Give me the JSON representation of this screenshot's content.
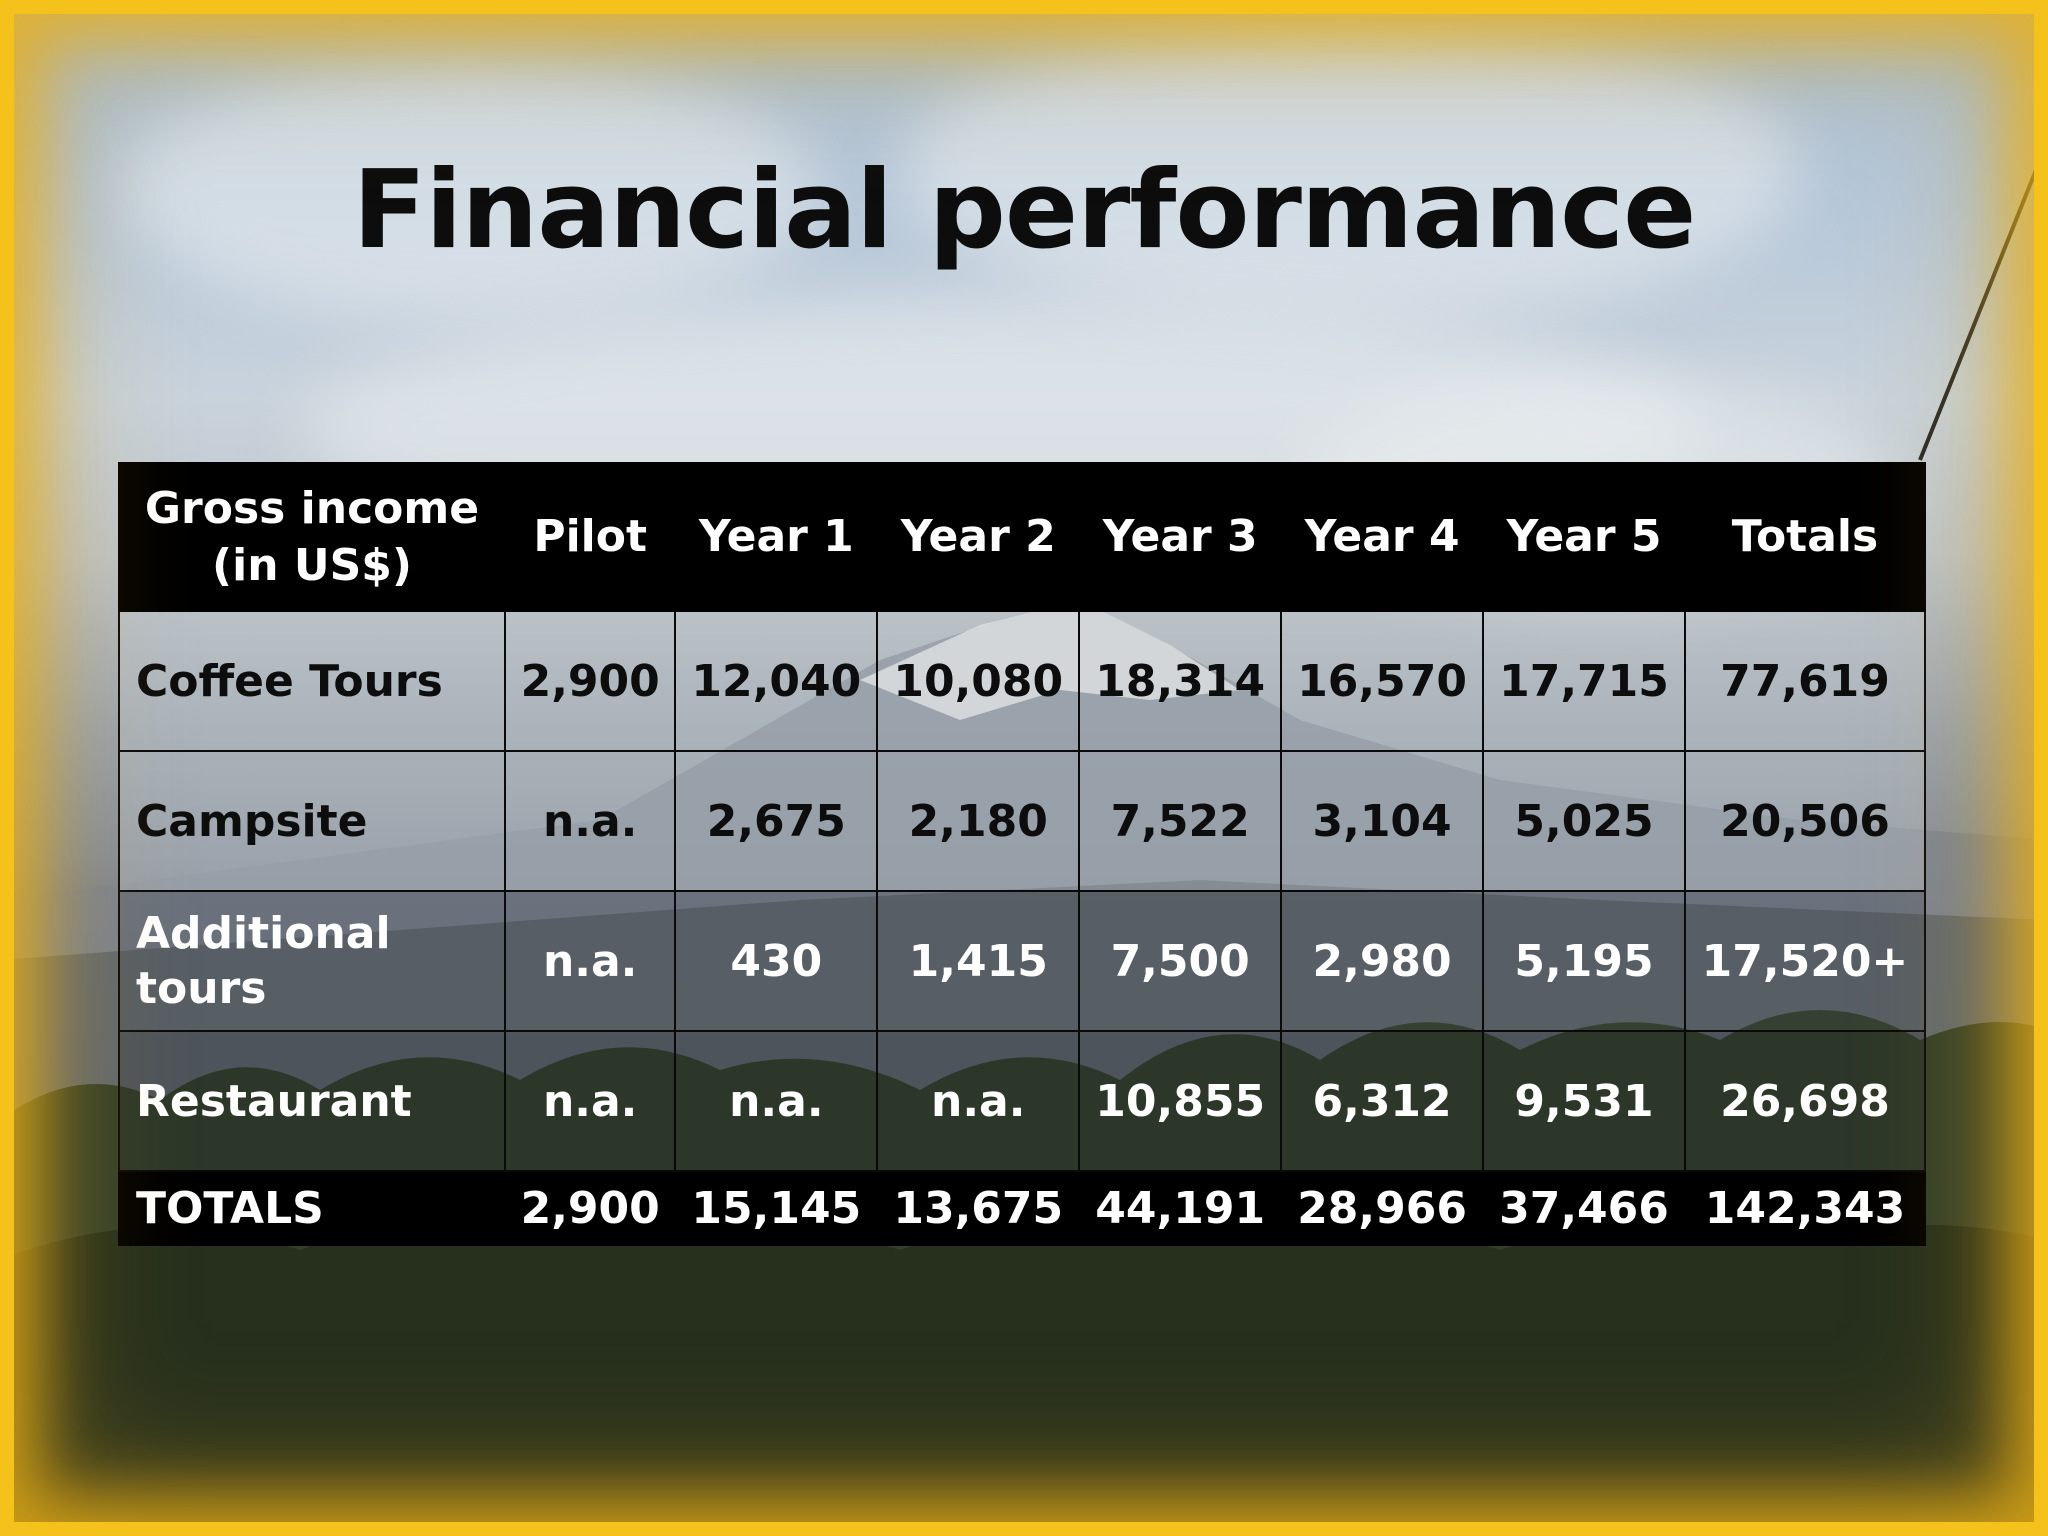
{
  "title": "Financial performance",
  "table": {
    "header": [
      "Gross income (in US$)",
      "Pilot",
      "Year 1",
      "Year 2",
      "Year 3",
      "Year 4",
      "Year 5",
      "Totals"
    ],
    "rows": [
      {
        "label": "Coffee Tours",
        "values": [
          "2,900",
          "12,040",
          "10,080",
          "18,314",
          "16,570",
          "17,715",
          "77,619"
        ]
      },
      {
        "label": "Campsite",
        "values": [
          "n.a.",
          "2,675",
          "2,180",
          "7,522",
          "3,104",
          "5,025",
          "20,506"
        ]
      },
      {
        "label": "Additional tours",
        "values": [
          "n.a.",
          "430",
          "1,415",
          "7,500",
          "2,980",
          "5,195",
          "17,520+"
        ]
      },
      {
        "label": "Restaurant",
        "values": [
          "n.a.",
          "n.a.",
          "n.a.",
          "10,855",
          "6,312",
          "9,531",
          "26,698"
        ]
      }
    ],
    "totals": {
      "label": "TOTALS",
      "values": [
        "2,900",
        "15,145",
        "13,675",
        "44,191",
        "28,966",
        "37,466",
        "142,343"
      ]
    }
  },
  "colors": {
    "frame": "#f4c21a",
    "header_bg": "#000000",
    "header_text": "#ffffff"
  }
}
